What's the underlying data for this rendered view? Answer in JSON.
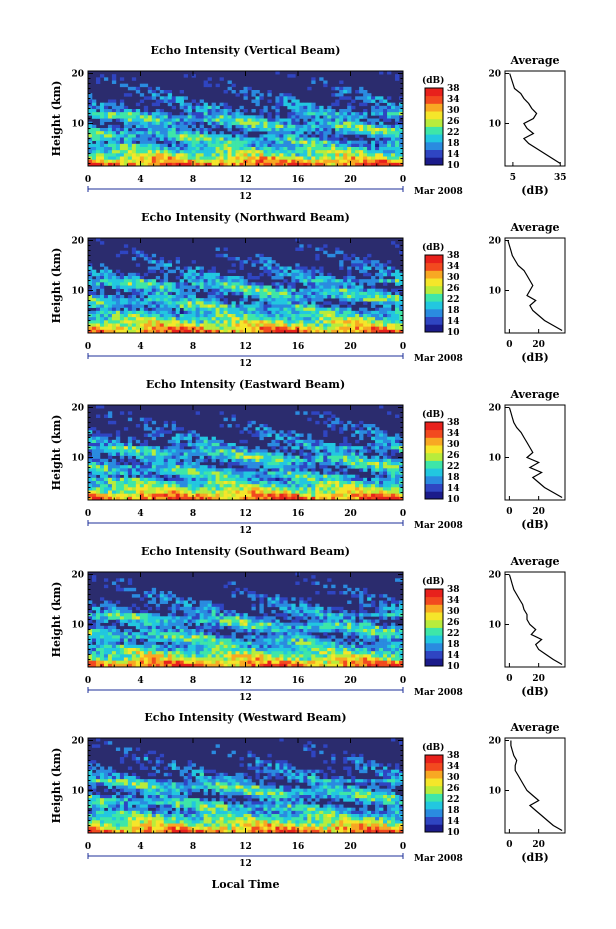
{
  "chart_data": [
    {
      "type": "heatmap",
      "title": "Echo Intensity (Vertical Beam)",
      "ylabel": "Height (km)",
      "xticks": [
        "0",
        "4",
        "8",
        "12",
        "16",
        "20",
        "0"
      ],
      "yticks": [
        "20",
        "10"
      ],
      "date_label": "12",
      "month_label": "Mar 2008",
      "xlim": [
        0,
        24
      ],
      "ylim": [
        1.5,
        20.5
      ],
      "colorbar": {
        "label": "(dB)",
        "ticks": [
          "38",
          "34",
          "30",
          "26",
          "22",
          "18",
          "14",
          "10"
        ],
        "range": [
          10,
          38
        ]
      },
      "average_profile": {
        "title": "Average",
        "xlabel": "(dB)",
        "xticks": [
          "5",
          "35"
        ],
        "xlim": [
          0,
          38
        ],
        "height_km": [
          2,
          3,
          4,
          5,
          6,
          7,
          8,
          9,
          10,
          11,
          12,
          13,
          14,
          15,
          16,
          17,
          18,
          19,
          20
        ],
        "db": [
          35,
          30,
          25,
          20,
          15,
          12,
          18,
          14,
          12,
          18,
          20,
          17,
          15,
          12,
          10,
          6,
          5,
          4,
          3
        ]
      }
    },
    {
      "type": "heatmap",
      "title": "Echo Intensity (Northward Beam)",
      "ylabel": "Height (km)",
      "xticks": [
        "0",
        "4",
        "8",
        "12",
        "16",
        "20",
        "0"
      ],
      "yticks": [
        "20",
        "10"
      ],
      "date_label": "12",
      "month_label": "Mar 2008",
      "xlim": [
        0,
        24
      ],
      "ylim": [
        1.5,
        20.5
      ],
      "colorbar": {
        "label": "(dB)",
        "ticks": [
          "38",
          "34",
          "30",
          "26",
          "22",
          "18",
          "14",
          "10"
        ],
        "range": [
          10,
          38
        ]
      },
      "average_profile": {
        "title": "Average",
        "xlabel": "(dB)",
        "xticks": [
          "0",
          "20"
        ],
        "xlim": [
          -3,
          38
        ],
        "height_km": [
          2,
          3,
          4,
          5,
          6,
          7,
          8,
          9,
          10,
          11,
          12,
          13,
          14,
          15,
          16,
          17,
          18,
          19,
          20
        ],
        "db": [
          36,
          30,
          24,
          20,
          16,
          14,
          18,
          12,
          14,
          16,
          14,
          12,
          10,
          6,
          4,
          2,
          1,
          0,
          -1
        ]
      }
    },
    {
      "type": "heatmap",
      "title": "Echo Intensity (Eastward Beam)",
      "ylabel": "Height (km)",
      "xticks": [
        "0",
        "4",
        "8",
        "12",
        "16",
        "20",
        "0"
      ],
      "yticks": [
        "20",
        "10"
      ],
      "date_label": "12",
      "month_label": "Mar 2008",
      "xlim": [
        0,
        24
      ],
      "ylim": [
        1.5,
        20.5
      ],
      "colorbar": {
        "label": "(dB)",
        "ticks": [
          "38",
          "34",
          "30",
          "26",
          "22",
          "18",
          "14",
          "10"
        ],
        "range": [
          10,
          38
        ]
      },
      "average_profile": {
        "title": "Average",
        "xlabel": "(dB)",
        "xticks": [
          "0",
          "20"
        ],
        "xlim": [
          -3,
          38
        ],
        "height_km": [
          2,
          3,
          4,
          5,
          6,
          7,
          8,
          9,
          10,
          11,
          12,
          13,
          14,
          15,
          16,
          17,
          18,
          19,
          20
        ],
        "db": [
          36,
          30,
          24,
          20,
          16,
          22,
          14,
          20,
          12,
          16,
          14,
          12,
          10,
          8,
          5,
          3,
          2,
          1,
          0
        ]
      }
    },
    {
      "type": "heatmap",
      "title": "Echo Intensity (Southward Beam)",
      "ylabel": "Height (km)",
      "xticks": [
        "0",
        "4",
        "8",
        "12",
        "16",
        "20",
        "0"
      ],
      "yticks": [
        "20",
        "10"
      ],
      "date_label": "12",
      "month_label": "Mar 2008",
      "xlim": [
        0,
        24
      ],
      "ylim": [
        1.5,
        20.5
      ],
      "colorbar": {
        "label": "(dB)",
        "ticks": [
          "38",
          "34",
          "30",
          "26",
          "22",
          "18",
          "14",
          "10"
        ],
        "range": [
          10,
          38
        ]
      },
      "average_profile": {
        "title": "Average",
        "xlabel": "(dB)",
        "xticks": [
          "0",
          "20"
        ],
        "xlim": [
          -3,
          38
        ],
        "height_km": [
          2,
          3,
          4,
          5,
          6,
          7,
          8,
          9,
          10,
          11,
          12,
          13,
          14,
          15,
          16,
          17,
          18,
          19,
          20
        ],
        "db": [
          36,
          30,
          25,
          20,
          18,
          22,
          15,
          18,
          14,
          12,
          12,
          10,
          9,
          7,
          5,
          3,
          2,
          1,
          0
        ]
      }
    },
    {
      "type": "heatmap",
      "title": "Echo Intensity (Westward Beam)",
      "ylabel": "Height (km)",
      "xticks": [
        "0",
        "4",
        "8",
        "12",
        "16",
        "20",
        "0"
      ],
      "yticks": [
        "20",
        "10"
      ],
      "date_label": "12",
      "month_label": "Mar 2008",
      "xlabel": "Local Time",
      "xlim": [
        0,
        24
      ],
      "ylim": [
        1.5,
        20.5
      ],
      "colorbar": {
        "label": "(dB)",
        "ticks": [
          "38",
          "34",
          "30",
          "26",
          "22",
          "18",
          "14",
          "10"
        ],
        "range": [
          10,
          38
        ]
      },
      "average_profile": {
        "title": "Average",
        "xlabel": "(dB)",
        "xticks": [
          "0",
          "20"
        ],
        "xlim": [
          -3,
          38
        ],
        "height_km": [
          2,
          3,
          4,
          5,
          6,
          7,
          8,
          9,
          10,
          11,
          12,
          13,
          14,
          15,
          16,
          17,
          18,
          19,
          20
        ],
        "db": [
          36,
          30,
          26,
          22,
          18,
          14,
          20,
          16,
          12,
          10,
          8,
          6,
          4,
          4,
          5,
          3,
          2,
          1,
          1
        ]
      }
    }
  ],
  "colors": {
    "colormap": [
      "#1b1b8a",
      "#2f45c2",
      "#2a8be0",
      "#22c7e0",
      "#3ee6a8",
      "#b8ec3c",
      "#f5e62a",
      "#f8a823",
      "#f24a1f",
      "#e8211c"
    ],
    "background_dark": "#2b2c6e",
    "axis": "#000000",
    "date_line": "#1d2f9a"
  }
}
